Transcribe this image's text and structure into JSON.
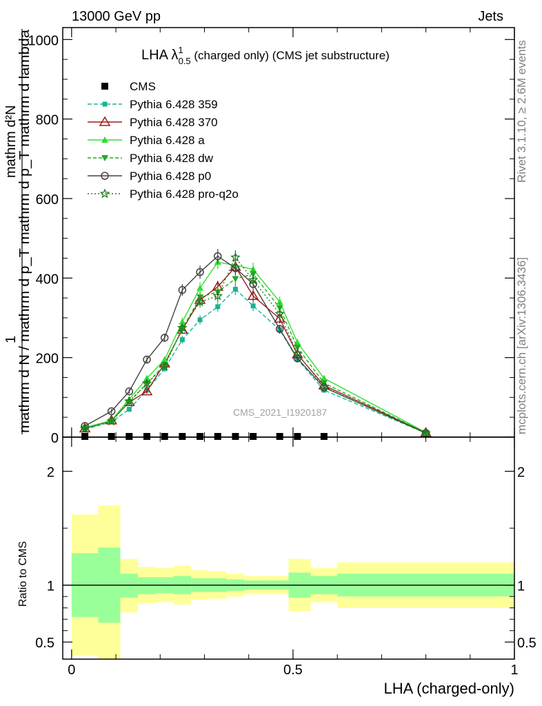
{
  "header": {
    "energy_label": "13000 GeV pp",
    "process_label": "Jets"
  },
  "side_labels": {
    "rivet": "Rivet 3.1.10, ≥ 2.6M events",
    "mcplots": "mcplots.cern.ch [arXiv:1306.3436]"
  },
  "watermark": "CMS_2021_I1920187",
  "chart_data": [
    {
      "type": "line",
      "title_main": "LHA λ",
      "title_sup": "1",
      "title_sub": "0.5",
      "title_rest": " (charged only) (CMS jet substructure)",
      "ylabel_numerator": "1",
      "ylabel_denominator": "mathrm d N / mathrm d p_T mathrm d p_T mathrm d lambda",
      "ylabel_extra": "mathrm d²N",
      "xlim": [
        -0.02,
        1.0
      ],
      "ylim": [
        0,
        1030
      ],
      "yticks": [
        0,
        200,
        400,
        600,
        800,
        1000
      ],
      "ytick_labels": [
        "0",
        "200",
        "400",
        "600",
        "800",
        "1000"
      ],
      "x": [
        0.03,
        0.09,
        0.13,
        0.17,
        0.21,
        0.25,
        0.29,
        0.33,
        0.37,
        0.41,
        0.47,
        0.51,
        0.57,
        0.8
      ],
      "series": [
        {
          "name": "CMS",
          "color": "#000000",
          "marker": "square",
          "dash": "none",
          "values": [
            1,
            1,
            1,
            1,
            2,
            2,
            2,
            2,
            2,
            2,
            2,
            2,
            1,
            0
          ]
        },
        {
          "name": "Pythia 6.428 359",
          "color": "#1ab394",
          "marker": "square-small",
          "dash": "6,3",
          "values": [
            20,
            38,
            70,
            118,
            172,
            245,
            295,
            328,
            372,
            330,
            270,
            196,
            118,
            10
          ]
        },
        {
          "name": "Pythia 6.428 370",
          "color": "#9b1b1b",
          "marker": "triangle-open",
          "dash": "none",
          "values": [
            22,
            42,
            88,
            115,
            185,
            270,
            345,
            378,
            428,
            355,
            298,
            208,
            130,
            11
          ]
        },
        {
          "name": "Pythia 6.428 a",
          "color": "#33dd33",
          "marker": "triangle",
          "dash": "none",
          "values": [
            24,
            42,
            95,
            148,
            195,
            290,
            375,
            440,
            432,
            422,
            340,
            238,
            148,
            12
          ]
        },
        {
          "name": "Pythia 6.428 dw",
          "color": "#22aa22",
          "marker": "triangle-down",
          "dash": "5,3",
          "values": [
            22,
            40,
            88,
            135,
            182,
            272,
            352,
            365,
            398,
            410,
            325,
            225,
            136,
            11
          ]
        },
        {
          "name": "Pythia 6.428 p0",
          "color": "#404040",
          "marker": "circle-open",
          "dash": "none",
          "values": [
            28,
            65,
            115,
            195,
            250,
            370,
            415,
            455,
            425,
            385,
            272,
            198,
            125,
            10
          ]
        },
        {
          "name": "Pythia 6.428 pro-q2o",
          "color": "#1e7d1e",
          "marker": "star",
          "dash": "2,3",
          "values": [
            21,
            40,
            90,
            135,
            178,
            275,
            340,
            355,
            452,
            395,
            310,
            210,
            126,
            10
          ]
        }
      ]
    },
    {
      "type": "area",
      "ylabel": "Ratio to CMS",
      "xlabel": "LHA (charged-only)",
      "xlim": [
        -0.02,
        1.0
      ],
      "ylim": [
        0.35,
        2.3
      ],
      "xticks": [
        0,
        0.5,
        1
      ],
      "xtick_labels": [
        "0",
        "0.5",
        "1"
      ],
      "yticks": [
        0.5,
        1,
        2
      ],
      "ytick_labels": [
        "0.5",
        "1",
        "2"
      ],
      "bins": [
        [
          0.0,
          0.06
        ],
        [
          0.06,
          0.11
        ],
        [
          0.11,
          0.15
        ],
        [
          0.15,
          0.19
        ],
        [
          0.19,
          0.23
        ],
        [
          0.23,
          0.27
        ],
        [
          0.27,
          0.31
        ],
        [
          0.31,
          0.35
        ],
        [
          0.35,
          0.39
        ],
        [
          0.39,
          0.44
        ],
        [
          0.44,
          0.49
        ],
        [
          0.49,
          0.54
        ],
        [
          0.54,
          0.6
        ],
        [
          0.6,
          1.0
        ]
      ],
      "band_inner_low": [
        0.72,
        0.67,
        0.89,
        0.92,
        0.93,
        0.92,
        0.94,
        0.94,
        0.95,
        0.96,
        0.96,
        0.89,
        0.92,
        0.9
      ],
      "band_inner_high": [
        1.28,
        1.33,
        1.1,
        1.07,
        1.07,
        1.08,
        1.06,
        1.06,
        1.05,
        1.04,
        1.04,
        1.11,
        1.08,
        1.1
      ],
      "band_outer_low": [
        0.38,
        0.3,
        0.76,
        0.84,
        0.85,
        0.83,
        0.87,
        0.88,
        0.9,
        0.92,
        0.92,
        0.77,
        0.85,
        0.8
      ],
      "band_outer_high": [
        1.62,
        1.7,
        1.23,
        1.16,
        1.15,
        1.17,
        1.13,
        1.12,
        1.1,
        1.08,
        1.08,
        1.23,
        1.15,
        1.2
      ],
      "inner_color": "#99ff99",
      "outer_color": "#ffff99",
      "reference": 1
    }
  ]
}
